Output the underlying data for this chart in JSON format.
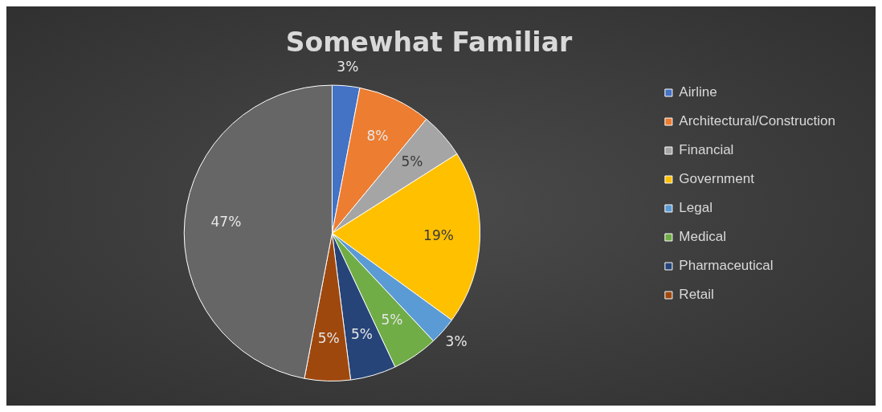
{
  "chart_data": {
    "type": "pie",
    "title": "Somewhat Familiar",
    "categories": [
      "Airline",
      "Architectural/Construction",
      "Financial",
      "Government",
      "Legal",
      "Medical",
      "Pharmaceutical",
      "Retail",
      null
    ],
    "values": [
      3,
      8,
      5,
      19,
      3,
      5,
      5,
      5,
      47
    ],
    "colors": [
      "#4472c4",
      "#ed7d31",
      "#a5a5a5",
      "#ffc000",
      "#5b9bd5",
      "#70ad47",
      "#264478",
      "#9e480e",
      "#666666"
    ],
    "value_labels": [
      "3%",
      "8%",
      "5%",
      "19%",
      "3%",
      "5%",
      "5%",
      "5%",
      "47%"
    ],
    "legend": "right"
  }
}
